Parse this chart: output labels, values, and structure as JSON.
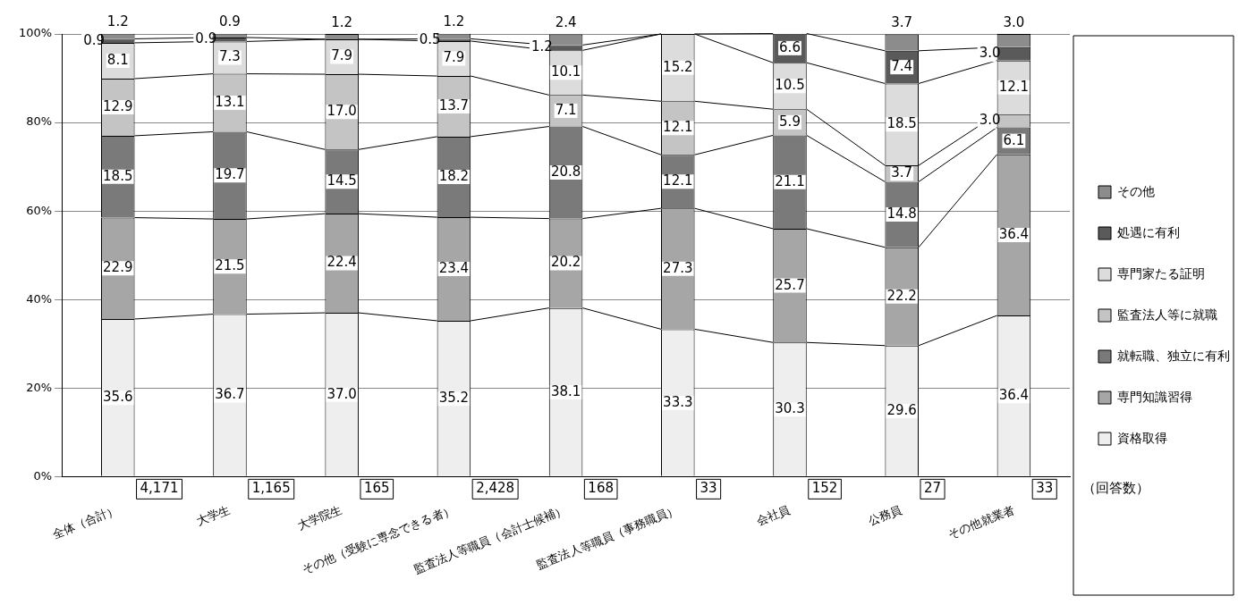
{
  "chart_data": {
    "type": "bar",
    "stacked": true,
    "categories": [
      "全体（合計）",
      "大学生",
      "大学院生",
      "その他（受験に専念できる者）",
      "監査法人等職員（会計士候補）",
      "監査法人等職員（事務職員）",
      "会社員",
      "公務員",
      "その他就業者"
    ],
    "series": [
      {
        "name": "資格取得",
        "color": "#eeeeee",
        "values": [
          35.6,
          36.7,
          37.0,
          35.2,
          38.1,
          33.3,
          30.3,
          29.6,
          36.4
        ],
        "value_labels": [
          "35.6",
          "36.7",
          "37.0",
          "35.2",
          "38.1",
          "33.3",
          "30.3",
          "29.6",
          "36.4"
        ]
      },
      {
        "name": "専門知識習得",
        "color": "#a6a6a6",
        "values": [
          22.9,
          21.5,
          22.4,
          23.4,
          20.2,
          27.3,
          25.7,
          22.2,
          36.4
        ],
        "value_labels": [
          "22.9",
          "21.5",
          "22.4",
          "23.4",
          "20.2",
          "27.3",
          "25.7",
          "22.2",
          "36.4"
        ]
      },
      {
        "name": "就転職、独立に有利",
        "color": "#7a7a7a",
        "values": [
          18.5,
          19.7,
          14.5,
          18.2,
          20.8,
          12.1,
          21.1,
          14.8,
          6.1
        ],
        "value_labels": [
          "18.5",
          "19.7",
          "14.5",
          "18.2",
          "20.8",
          "12.1",
          "21.1",
          "14.8",
          "6.1"
        ]
      },
      {
        "name": "監査法人等に就職",
        "color": "#c4c4c4",
        "values": [
          12.9,
          13.1,
          17.0,
          13.7,
          7.1,
          12.1,
          5.9,
          3.7,
          3.0
        ],
        "value_labels": [
          "12.9",
          "13.1",
          "17.0",
          "13.7",
          "7.1",
          "12.1",
          "5.9",
          "3.7",
          "3.0"
        ]
      },
      {
        "name": "専門家たる証明",
        "color": "#dcdcdc",
        "values": [
          8.1,
          7.3,
          7.9,
          7.9,
          10.1,
          15.2,
          10.5,
          18.5,
          12.1
        ],
        "value_labels": [
          "8.1",
          "7.3",
          "7.9",
          "7.9",
          "10.1",
          "15.2",
          "10.5",
          "18.5",
          "12.1"
        ]
      },
      {
        "name": "処遇に有利",
        "color": "#5a5a5a",
        "values": [
          0.9,
          0.9,
          null,
          0.5,
          1.2,
          null,
          6.6,
          7.4,
          3.0
        ],
        "value_labels": [
          "0.9",
          "0.9",
          null,
          "0.5",
          "1.2",
          null,
          "6.6",
          "7.4",
          "3.0"
        ]
      },
      {
        "name": "その他",
        "color": "#8c8c8c",
        "values": [
          1.2,
          0.9,
          1.2,
          1.2,
          2.4,
          null,
          null,
          3.7,
          3.0
        ],
        "value_labels": [
          "1.2",
          "0.9",
          "1.2",
          "1.2",
          "2.4",
          null,
          null,
          "3.7",
          "3.0"
        ]
      }
    ],
    "ylim": [
      0,
      100
    ],
    "yticks": [
      {
        "value": 0,
        "label": "0%"
      },
      {
        "value": 20,
        "label": "20%"
      },
      {
        "value": 40,
        "label": "40%"
      },
      {
        "value": 60,
        "label": "60%"
      },
      {
        "value": 80,
        "label": "80%"
      },
      {
        "value": 100,
        "label": "100%"
      }
    ],
    "grid": "y",
    "legend": "right",
    "annotations": [
      "4,171",
      "1,165",
      "165",
      "2,428",
      "168",
      "33",
      "152",
      "27",
      "33",
      "（回答数）"
    ]
  }
}
